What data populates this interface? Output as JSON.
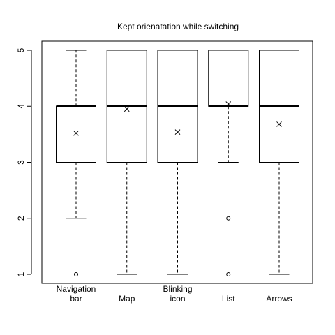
{
  "chart_data": {
    "type": "boxplot",
    "title": "Kept orienatation while switching",
    "xlabel": "",
    "ylabel": "",
    "ylim": [
      1,
      5
    ],
    "yticks": [
      1,
      2,
      3,
      4,
      5
    ],
    "grid": false,
    "legend": "none",
    "categories": [
      {
        "label_lines": [
          "Navigation",
          "bar"
        ],
        "q1": 3,
        "median": 4,
        "q3": 4,
        "whisker_low": 2,
        "whisker_high": 5,
        "mean": 3.52,
        "outliers": [
          1
        ]
      },
      {
        "label_lines": [
          "Map"
        ],
        "q1": 3,
        "median": 4,
        "q3": 5,
        "whisker_low": 1,
        "whisker_high": 5,
        "mean": 3.95,
        "outliers": []
      },
      {
        "label_lines": [
          "Blinking",
          "icon"
        ],
        "q1": 3,
        "median": 4,
        "q3": 5,
        "whisker_low": 1,
        "whisker_high": 5,
        "mean": 3.54,
        "outliers": []
      },
      {
        "label_lines": [
          "List"
        ],
        "q1": 4,
        "median": 4,
        "q3": 5,
        "whisker_low": 3,
        "whisker_high": 5,
        "mean": 4.04,
        "outliers": [
          2,
          1
        ]
      },
      {
        "label_lines": [
          "Arrows"
        ],
        "q1": 3,
        "median": 4,
        "q3": 5,
        "whisker_low": 1,
        "whisker_high": 5,
        "mean": 3.68,
        "outliers": []
      }
    ],
    "colors": {
      "stroke": "#000000",
      "background": "#ffffff"
    }
  }
}
